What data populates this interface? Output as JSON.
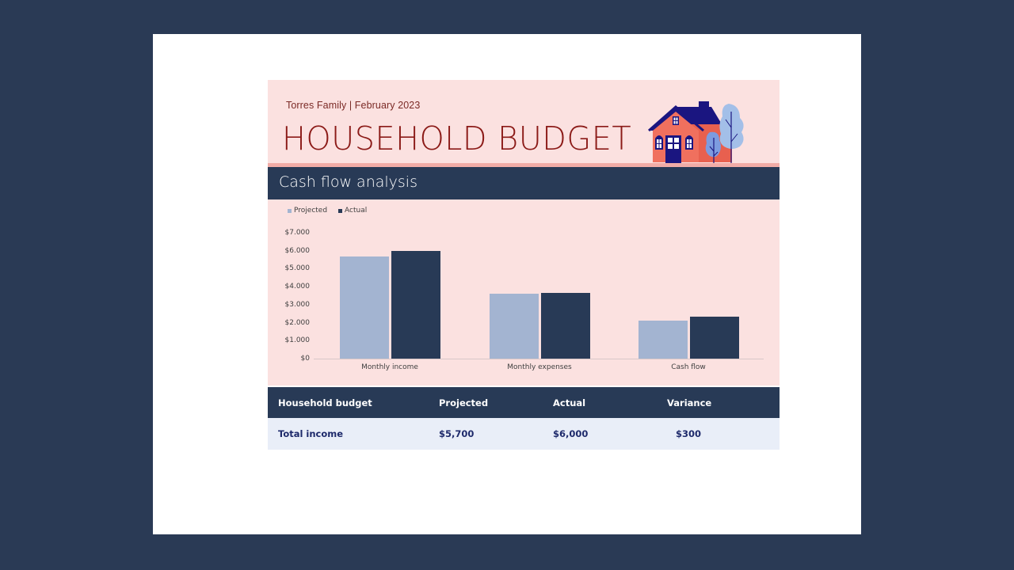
{
  "header": {
    "subtitle": "Torres Family  |  February 2023",
    "title": "HOUSEHOLD BUDGET"
  },
  "section": {
    "title": "Cash flow analysis"
  },
  "colors": {
    "background": "#2a3a55",
    "header_pink": "#fbe1e0",
    "title_red": "#8b1a17",
    "stripe_salmon": "#f1aca7",
    "navy": "#283a56",
    "projected": "#a3b4d1",
    "actual": "#283a56",
    "table_row": "#e9eef8"
  },
  "chart_data": {
    "type": "bar",
    "title": "Cash flow analysis",
    "categories": [
      "Monthly income",
      "Monthly expenses",
      "Cash flow"
    ],
    "series": [
      {
        "name": "Projected",
        "color": "#a3b4d1",
        "values": [
          5700,
          3600,
          2100
        ]
      },
      {
        "name": "Actual",
        "color": "#283a56",
        "values": [
          6000,
          3650,
          2350
        ]
      }
    ],
    "xlabel": "",
    "ylabel": "",
    "ylim": [
      0,
      7000
    ],
    "yticks": [
      "$0",
      "$1.000",
      "$2.000",
      "$3.000",
      "$4.000",
      "$5.000",
      "$6.000",
      "$7.000"
    ],
    "legend_position": "top-left",
    "grid": false
  },
  "legend": {
    "projected": "Projected",
    "actual": "Actual"
  },
  "table": {
    "headers": [
      "Household budget",
      "Projected",
      "Actual",
      "Variance"
    ],
    "rows": [
      [
        "Total income",
        "$5,700",
        "$6,000",
        "$300"
      ]
    ]
  }
}
